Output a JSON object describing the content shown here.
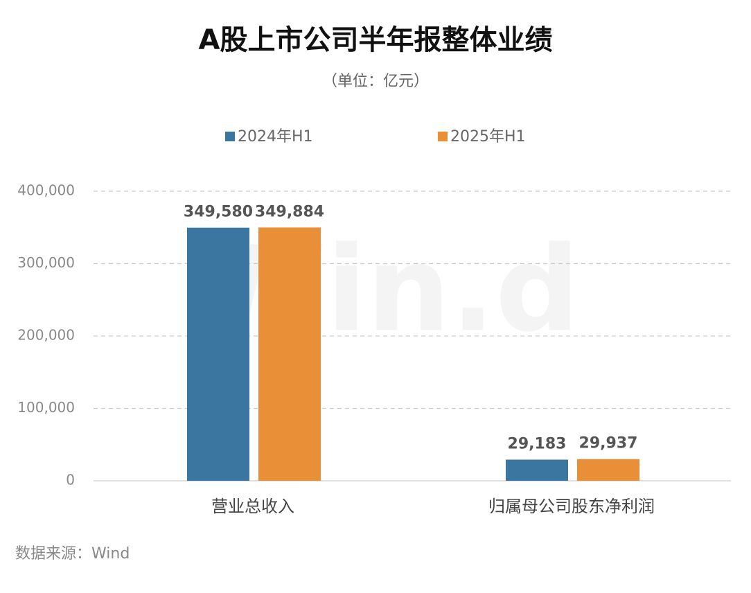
{
  "chart_data": {
    "type": "bar",
    "title": "A股上市公司半年报整体业绩",
    "subtitle": "（单位：亿元）",
    "categories": [
      "营业总收入",
      "归属母公司股东净利润"
    ],
    "series": [
      {
        "name": "2024年H1",
        "color": "#3b76a0",
        "values": [
          349580,
          29183
        ],
        "value_labels": [
          "349,580",
          "29,183"
        ]
      },
      {
        "name": "2025年H1",
        "color": "#e98f38",
        "values": [
          349884,
          29937
        ],
        "value_labels": [
          "349,884",
          "29,937"
        ]
      }
    ],
    "ylim": [
      0,
      400000
    ],
    "yticks": [
      0,
      {
        "value": 100000,
        "label": "100,000"
      },
      {
        "value": 200000,
        "label": "200,000"
      },
      {
        "value": 300000,
        "label": "300,000"
      },
      {
        "value": 400000,
        "label": "400,000"
      }
    ],
    "grid": true,
    "legend": "top",
    "watermark": "Win.d",
    "source": "数据来源：Wind"
  }
}
